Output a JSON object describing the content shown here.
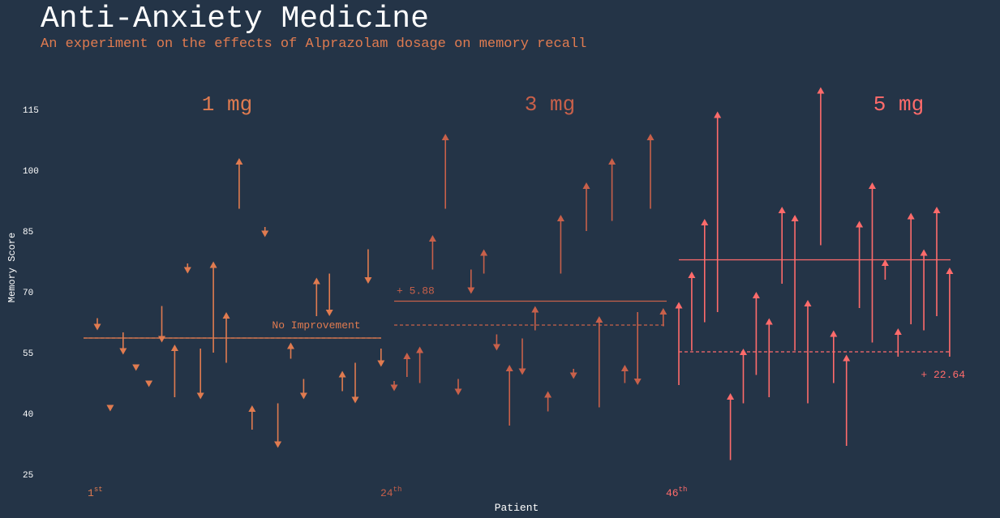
{
  "header": {
    "title": "Anti-Anxiety Medicine",
    "subtitle": "An experiment on the effects of Alprazolam dosage on memory recall"
  },
  "chart_data": {
    "type": "arrow",
    "title": "Anti-Anxiety Medicine",
    "subtitle": "An experiment on the effects of Alprazolam dosage on memory recall",
    "xlabel": "Patient",
    "ylabel": "Memory Score",
    "ylim": [
      22,
      122
    ],
    "yticks": [
      25,
      40,
      55,
      70,
      85,
      100,
      115
    ],
    "x_ticks": [
      {
        "n": "1",
        "sup": "st"
      },
      {
        "n": "24",
        "sup": "th"
      },
      {
        "n": "46",
        "sup": "th"
      }
    ],
    "groups": [
      {
        "name": "1 mg",
        "color": "#e07b50",
        "mean_before": 58.6,
        "mean_after": 58.6,
        "annotation": "No Improvement",
        "patients": [
          {
            "before": 63.5,
            "after": 60.5
          },
          {
            "before": 42.0,
            "after": 40.5
          },
          {
            "before": 60.0,
            "after": 54.5
          },
          {
            "before": 52.0,
            "after": 50.5
          },
          {
            "before": 48.0,
            "after": 46.5
          },
          {
            "before": 66.5,
            "after": 57.5
          },
          {
            "before": 44.0,
            "after": 57.0
          },
          {
            "before": 77.0,
            "after": 74.5
          },
          {
            "before": 56.0,
            "after": 43.5
          },
          {
            "before": 55.0,
            "after": 77.5
          },
          {
            "before": 52.5,
            "after": 65.0
          },
          {
            "before": 90.5,
            "after": 103.0
          },
          {
            "before": 36.0,
            "after": 42.0
          },
          {
            "before": 86.0,
            "after": 83.5
          },
          {
            "before": 42.5,
            "after": 31.5
          },
          {
            "before": 53.5,
            "after": 57.5
          },
          {
            "before": 48.5,
            "after": 43.5
          },
          {
            "before": 64.0,
            "after": 73.5
          },
          {
            "before": 74.5,
            "after": 64.0
          },
          {
            "before": 45.5,
            "after": 50.5
          },
          {
            "before": 52.5,
            "after": 42.5
          },
          {
            "before": 80.5,
            "after": 72.0
          },
          {
            "before": 56.0,
            "after": 51.5
          }
        ]
      },
      {
        "name": "3 mg",
        "color": "#c8604a",
        "mean_before": 61.8,
        "mean_after": 67.7,
        "annotation": "+ 5.88",
        "patients": [
          {
            "before": 48.0,
            "after": 45.5
          },
          {
            "before": 49.0,
            "after": 55.0
          },
          {
            "before": 47.5,
            "after": 56.5
          },
          {
            "before": 75.5,
            "after": 84.0
          },
          {
            "before": 90.5,
            "after": 109.0
          },
          {
            "before": 48.5,
            "after": 44.5
          },
          {
            "before": 75.5,
            "after": 69.5
          },
          {
            "before": 74.5,
            "after": 80.5
          },
          {
            "before": 59.5,
            "after": 55.5
          },
          {
            "before": 37.0,
            "after": 52.0
          },
          {
            "before": 58.5,
            "after": 49.5
          },
          {
            "before": 60.5,
            "after": 66.5
          },
          {
            "before": 40.5,
            "after": 45.5
          },
          {
            "before": 74.5,
            "after": 89.0
          },
          {
            "before": 51.0,
            "after": 48.5
          },
          {
            "before": 85.0,
            "after": 97.0
          },
          {
            "before": 41.5,
            "after": 64.0
          },
          {
            "before": 87.5,
            "after": 103.0
          },
          {
            "before": 47.5,
            "after": 52.0
          },
          {
            "before": 65.0,
            "after": 47.0
          },
          {
            "before": 90.5,
            "after": 109.0
          },
          {
            "before": 61.5,
            "after": 66.0
          }
        ]
      },
      {
        "name": "5 mg",
        "color": "#ff6b6b",
        "mean_before": 55.2,
        "mean_after": 77.9,
        "annotation": "+ 22.64",
        "patients": [
          {
            "before": 47.0,
            "after": 67.5
          },
          {
            "before": 55.5,
            "after": 75.0
          },
          {
            "before": 62.5,
            "after": 88.0
          },
          {
            "before": 65.0,
            "after": 114.5
          },
          {
            "before": 28.5,
            "after": 45.0
          },
          {
            "before": 42.5,
            "after": 56.0
          },
          {
            "before": 49.5,
            "after": 70.0
          },
          {
            "before": 44.0,
            "after": 63.5
          },
          {
            "before": 72.0,
            "after": 91.0
          },
          {
            "before": 55.5,
            "after": 89.0
          },
          {
            "before": 42.5,
            "after": 68.0
          },
          {
            "before": 81.5,
            "after": 120.5
          },
          {
            "before": 47.5,
            "after": 60.5
          },
          {
            "before": 32.0,
            "after": 54.5
          },
          {
            "before": 66.0,
            "after": 87.5
          },
          {
            "before": 57.5,
            "after": 97.0
          },
          {
            "before": 73.0,
            "after": 78.0
          },
          {
            "before": 54.0,
            "after": 61.0
          },
          {
            "before": 62.0,
            "after": 89.5
          },
          {
            "before": 60.5,
            "after": 80.5
          },
          {
            "before": 64.0,
            "after": 91.0
          },
          {
            "before": 54.0,
            "after": 76.0
          }
        ]
      }
    ]
  }
}
